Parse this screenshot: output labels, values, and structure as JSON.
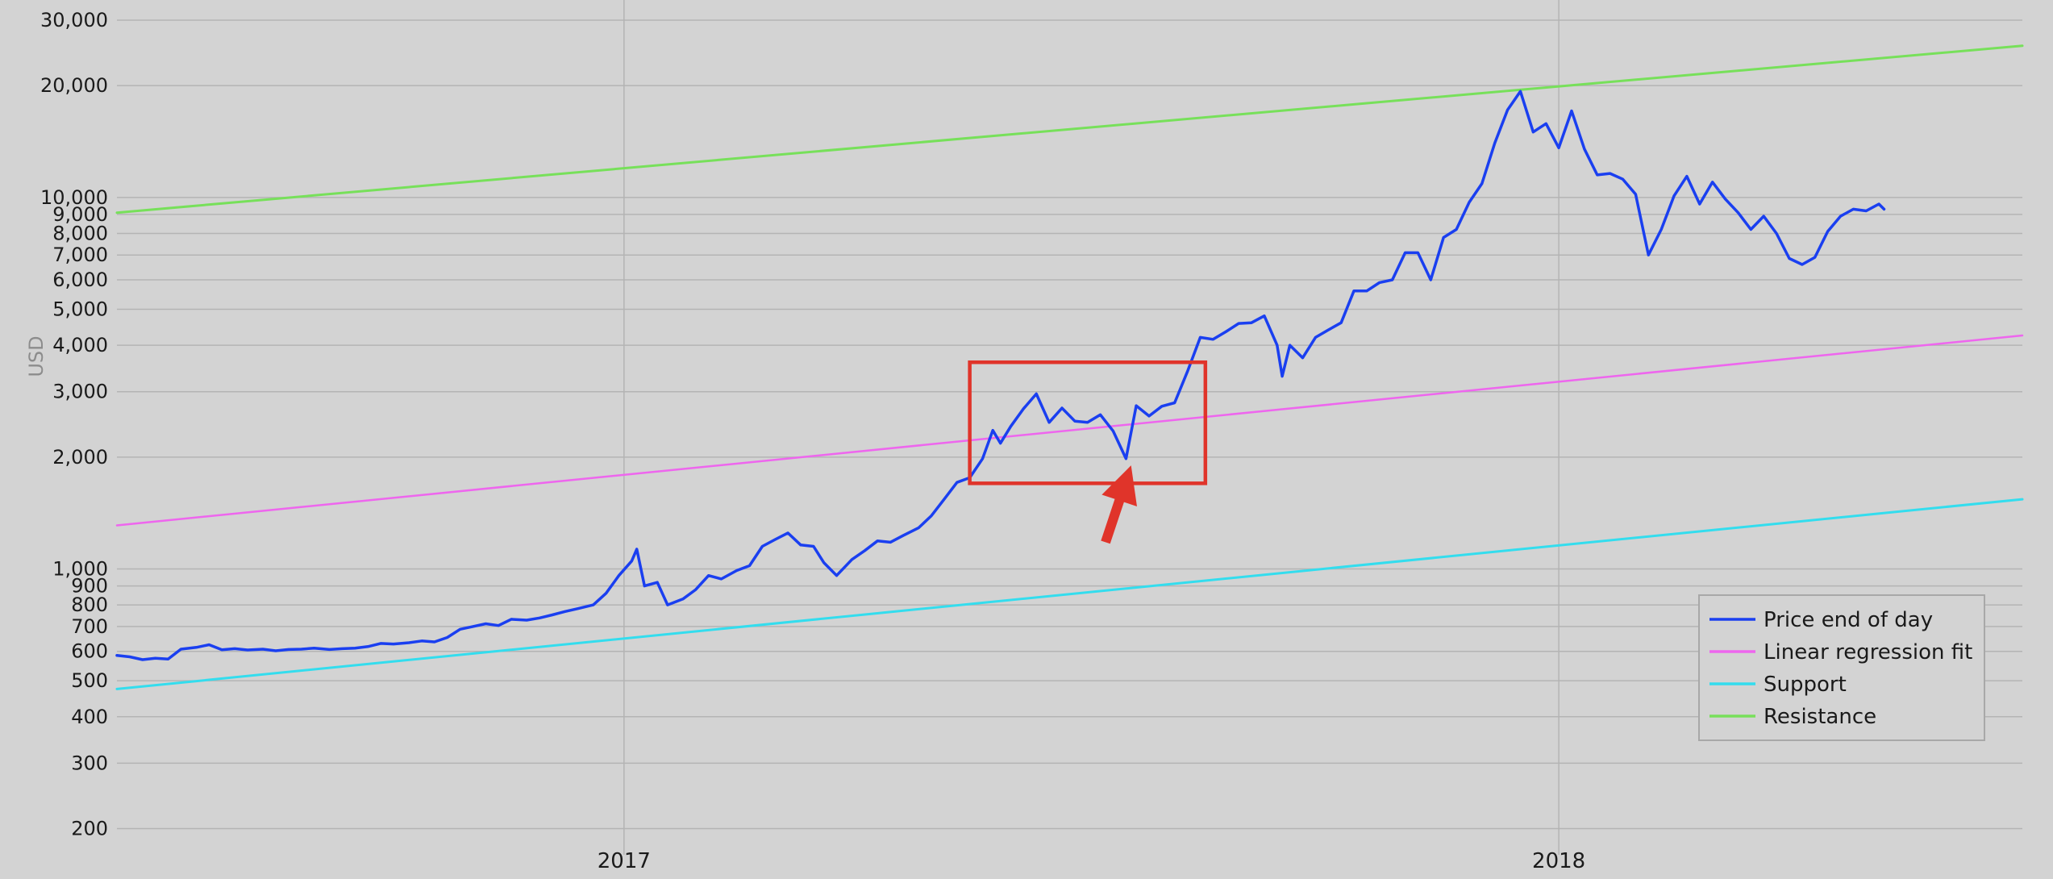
{
  "chart_data": {
    "type": "line",
    "ylabel": "USD",
    "y_scale": "log",
    "ylim": [
      170,
      34000
    ],
    "xlim": [
      "2016-06-17",
      "2018-07-01"
    ],
    "y_ticks": [
      {
        "value": 200,
        "label": "200"
      },
      {
        "value": 300,
        "label": "300"
      },
      {
        "value": 400,
        "label": "400"
      },
      {
        "value": 500,
        "label": "500"
      },
      {
        "value": 600,
        "label": "600"
      },
      {
        "value": 700,
        "label": "700"
      },
      {
        "value": 800,
        "label": "800"
      },
      {
        "value": 900,
        "label": "900"
      },
      {
        "value": 1000,
        "label": "1,000"
      },
      {
        "value": 2000,
        "label": "2,000"
      },
      {
        "value": 3000,
        "label": "3,000"
      },
      {
        "value": 4000,
        "label": "4,000"
      },
      {
        "value": 5000,
        "label": "5,000"
      },
      {
        "value": 6000,
        "label": "6,000"
      },
      {
        "value": 7000,
        "label": "7,000"
      },
      {
        "value": 8000,
        "label": "8,000"
      },
      {
        "value": 9000,
        "label": "9,000"
      },
      {
        "value": 10000,
        "label": "10,000"
      },
      {
        "value": 20000,
        "label": "20,000"
      },
      {
        "value": 30000,
        "label": "30,000"
      }
    ],
    "x_ticks": [
      {
        "value": "2017-01-01",
        "label": "2017"
      },
      {
        "value": "2018-01-01",
        "label": "2018"
      }
    ],
    "grid": true,
    "legend_position": "bottom-right",
    "series": [
      {
        "name": "Price end of day",
        "color": "#1a3ff0",
        "width": 3.5,
        "points": [
          [
            "2016-06-17",
            585
          ],
          [
            "2016-06-22",
            580
          ],
          [
            "2016-06-27",
            570
          ],
          [
            "2016-07-02",
            575
          ],
          [
            "2016-07-07",
            572
          ],
          [
            "2016-07-12",
            608
          ],
          [
            "2016-07-18",
            615
          ],
          [
            "2016-07-23",
            625
          ],
          [
            "2016-07-28",
            606
          ],
          [
            "2016-08-02",
            610
          ],
          [
            "2016-08-07",
            605
          ],
          [
            "2016-08-13",
            608
          ],
          [
            "2016-08-18",
            602
          ],
          [
            "2016-08-23",
            607
          ],
          [
            "2016-08-28",
            608
          ],
          [
            "2016-09-02",
            612
          ],
          [
            "2016-09-08",
            607
          ],
          [
            "2016-09-13",
            610
          ],
          [
            "2016-09-18",
            612
          ],
          [
            "2016-09-23",
            618
          ],
          [
            "2016-09-28",
            630
          ],
          [
            "2016-10-03",
            628
          ],
          [
            "2016-10-09",
            633
          ],
          [
            "2016-10-14",
            640
          ],
          [
            "2016-10-19",
            636
          ],
          [
            "2016-10-24",
            654
          ],
          [
            "2016-10-29",
            688
          ],
          [
            "2016-11-03",
            700
          ],
          [
            "2016-11-08",
            712
          ],
          [
            "2016-11-13",
            704
          ],
          [
            "2016-11-18",
            732
          ],
          [
            "2016-11-24",
            728
          ],
          [
            "2016-11-29",
            738
          ],
          [
            "2016-12-04",
            752
          ],
          [
            "2016-12-09",
            768
          ],
          [
            "2016-12-14",
            782
          ],
          [
            "2016-12-20",
            800
          ],
          [
            "2016-12-25",
            860
          ],
          [
            "2016-12-30",
            960
          ],
          [
            "2017-01-04",
            1050
          ],
          [
            "2017-01-06",
            1130
          ],
          [
            "2017-01-09",
            900
          ],
          [
            "2017-01-14",
            920
          ],
          [
            "2017-01-18",
            800
          ],
          [
            "2017-01-24",
            830
          ],
          [
            "2017-01-29",
            880
          ],
          [
            "2017-02-03",
            960
          ],
          [
            "2017-02-08",
            940
          ],
          [
            "2017-02-14",
            990
          ],
          [
            "2017-02-19",
            1020
          ],
          [
            "2017-02-24",
            1150
          ],
          [
            "2017-03-01",
            1200
          ],
          [
            "2017-03-06",
            1250
          ],
          [
            "2017-03-11",
            1160
          ],
          [
            "2017-03-16",
            1150
          ],
          [
            "2017-03-20",
            1040
          ],
          [
            "2017-03-25",
            960
          ],
          [
            "2017-03-31",
            1060
          ],
          [
            "2017-04-05",
            1120
          ],
          [
            "2017-04-10",
            1190
          ],
          [
            "2017-04-15",
            1180
          ],
          [
            "2017-04-20",
            1230
          ],
          [
            "2017-04-26",
            1290
          ],
          [
            "2017-05-01",
            1390
          ],
          [
            "2017-05-06",
            1540
          ],
          [
            "2017-05-11",
            1710
          ],
          [
            "2017-05-16",
            1760
          ],
          [
            "2017-05-21",
            1980
          ],
          [
            "2017-05-25",
            2360
          ],
          [
            "2017-05-28",
            2180
          ],
          [
            "2017-06-01",
            2420
          ],
          [
            "2017-06-06",
            2700
          ],
          [
            "2017-06-11",
            2960
          ],
          [
            "2017-06-16",
            2480
          ],
          [
            "2017-06-21",
            2710
          ],
          [
            "2017-06-26",
            2500
          ],
          [
            "2017-07-01",
            2480
          ],
          [
            "2017-07-06",
            2600
          ],
          [
            "2017-07-11",
            2350
          ],
          [
            "2017-07-16",
            1980
          ],
          [
            "2017-07-20",
            2750
          ],
          [
            "2017-07-25",
            2580
          ],
          [
            "2017-07-30",
            2740
          ],
          [
            "2017-08-04",
            2800
          ],
          [
            "2017-08-09",
            3400
          ],
          [
            "2017-08-14",
            4200
          ],
          [
            "2017-08-19",
            4150
          ],
          [
            "2017-08-24",
            4350
          ],
          [
            "2017-08-29",
            4580
          ],
          [
            "2017-09-03",
            4600
          ],
          [
            "2017-09-08",
            4800
          ],
          [
            "2017-09-13",
            4000
          ],
          [
            "2017-09-15",
            3300
          ],
          [
            "2017-09-18",
            4000
          ],
          [
            "2017-09-23",
            3700
          ],
          [
            "2017-09-28",
            4200
          ],
          [
            "2017-10-03",
            4400
          ],
          [
            "2017-10-08",
            4600
          ],
          [
            "2017-10-13",
            5600
          ],
          [
            "2017-10-18",
            5600
          ],
          [
            "2017-10-23",
            5900
          ],
          [
            "2017-10-28",
            6000
          ],
          [
            "2017-11-02",
            7100
          ],
          [
            "2017-11-07",
            7100
          ],
          [
            "2017-11-12",
            6000
          ],
          [
            "2017-11-17",
            7800
          ],
          [
            "2017-11-22",
            8200
          ],
          [
            "2017-11-27",
            9700
          ],
          [
            "2017-12-02",
            10900
          ],
          [
            "2017-12-07",
            14000
          ],
          [
            "2017-12-12",
            17200
          ],
          [
            "2017-12-17",
            19300
          ],
          [
            "2017-12-22",
            15000
          ],
          [
            "2017-12-27",
            15800
          ],
          [
            "2018-01-01",
            13600
          ],
          [
            "2018-01-06",
            17100
          ],
          [
            "2018-01-11",
            13500
          ],
          [
            "2018-01-16",
            11500
          ],
          [
            "2018-01-21",
            11600
          ],
          [
            "2018-01-26",
            11200
          ],
          [
            "2018-01-31",
            10200
          ],
          [
            "2018-02-05",
            7000
          ],
          [
            "2018-02-10",
            8200
          ],
          [
            "2018-02-15",
            10100
          ],
          [
            "2018-02-20",
            11400
          ],
          [
            "2018-02-25",
            9600
          ],
          [
            "2018-03-02",
            11000
          ],
          [
            "2018-03-07",
            9900
          ],
          [
            "2018-03-12",
            9100
          ],
          [
            "2018-03-17",
            8200
          ],
          [
            "2018-03-22",
            8900
          ],
          [
            "2018-03-27",
            8000
          ],
          [
            "2018-04-01",
            6850
          ],
          [
            "2018-04-06",
            6600
          ],
          [
            "2018-04-11",
            6900
          ],
          [
            "2018-04-16",
            8100
          ],
          [
            "2018-04-21",
            8900
          ],
          [
            "2018-04-26",
            9300
          ],
          [
            "2018-05-01",
            9200
          ],
          [
            "2018-05-06",
            9600
          ],
          [
            "2018-05-08",
            9300
          ]
        ]
      },
      {
        "name": "Linear regression fit",
        "color": "#ee66ee",
        "width": 2.5,
        "points": [
          [
            "2016-06-17",
            1310
          ],
          [
            "2018-07-01",
            4250
          ]
        ]
      },
      {
        "name": "Support",
        "color": "#33ddee",
        "width": 3,
        "points": [
          [
            "2016-06-17",
            475
          ],
          [
            "2018-07-01",
            1540
          ]
        ]
      },
      {
        "name": "Resistance",
        "color": "#77e05a",
        "width": 3,
        "points": [
          [
            "2016-06-17",
            9100
          ],
          [
            "2018-07-01",
            25600
          ]
        ]
      }
    ],
    "annotations": [
      {
        "type": "box",
        "color": "#e0342a",
        "x_range": [
          "2017-05-16",
          "2017-08-16"
        ],
        "y_range": [
          1700,
          3600
        ]
      },
      {
        "type": "arrow",
        "color": "#e0342a",
        "from": [
          "2017-07-08",
          1180
        ],
        "to": [
          "2017-07-18",
          1900
        ]
      }
    ]
  }
}
